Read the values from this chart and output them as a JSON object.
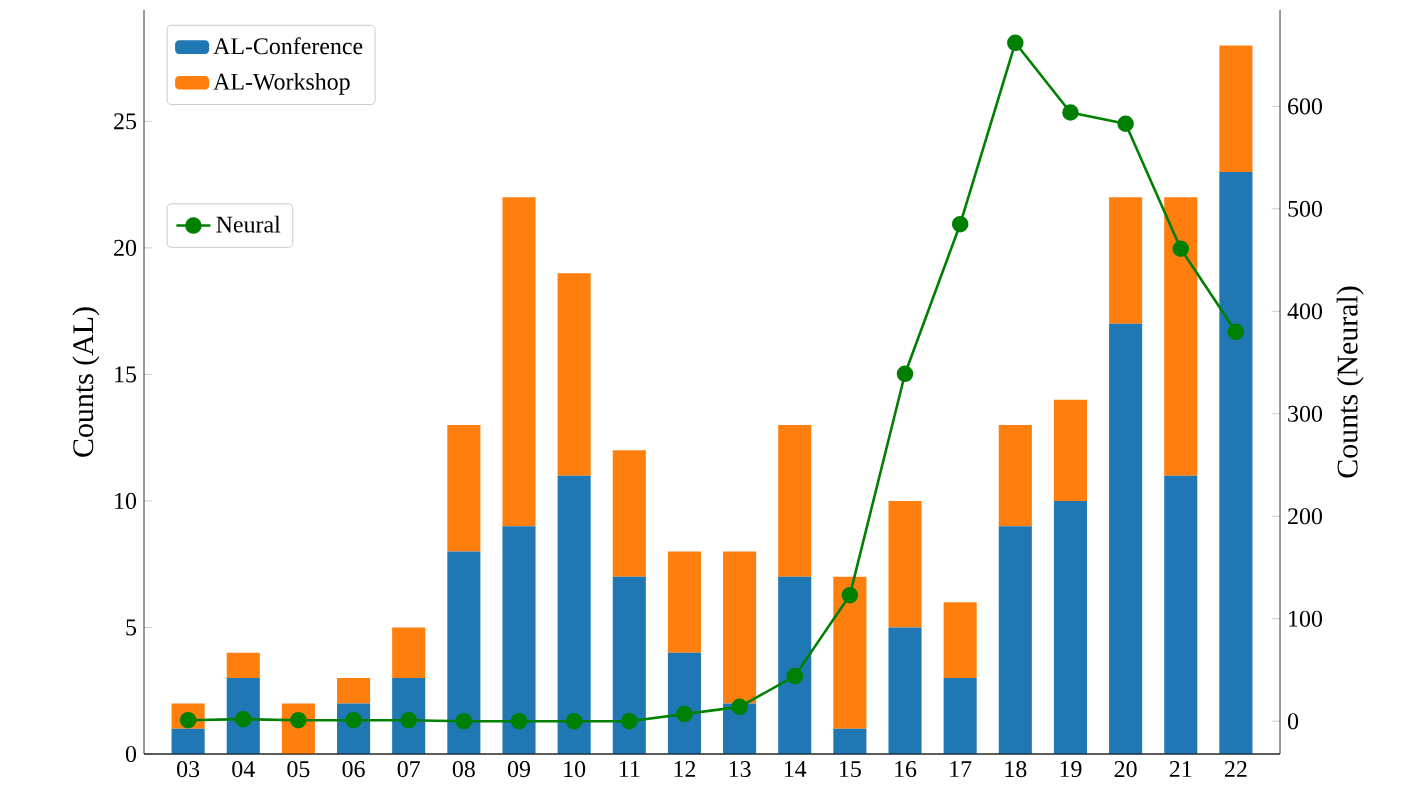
{
  "chart_data": {
    "type": "bar",
    "stacked": true,
    "ylabel": "Counts (AL)",
    "y2label": "Counts (Neural)",
    "categories": [
      "03",
      "04",
      "05",
      "06",
      "07",
      "08",
      "09",
      "10",
      "11",
      "12",
      "13",
      "14",
      "15",
      "16",
      "17",
      "18",
      "19",
      "20",
      "21",
      "22"
    ],
    "series": [
      {
        "name": "AL-Conference",
        "color": "#1f77b4",
        "values": [
          1,
          3,
          0,
          2,
          3,
          8,
          9,
          11,
          7,
          4,
          2,
          7,
          1,
          5,
          3,
          9,
          10,
          17,
          11,
          23
        ]
      },
      {
        "name": "AL-Workshop",
        "color": "#ff7f0e",
        "values": [
          1,
          1,
          2,
          1,
          2,
          5,
          13,
          8,
          5,
          4,
          6,
          6,
          6,
          5,
          3,
          4,
          4,
          5,
          11,
          5
        ]
      },
      {
        "name": "Neural",
        "type": "line",
        "axis": "y2",
        "color": "#008000",
        "marker": "circle",
        "values": [
          1,
          2,
          1,
          1,
          1,
          0,
          0,
          0,
          0,
          7,
          14,
          44,
          123,
          339,
          485,
          662,
          594,
          583,
          461,
          380
        ]
      }
    ],
    "ylim": [
      0,
      29.4
    ],
    "yticks": [
      0,
      5,
      10,
      15,
      20,
      25
    ],
    "y2lim": [
      -32,
      694
    ],
    "y2ticks": [
      0,
      100,
      200,
      300,
      400,
      500,
      600
    ],
    "legend": "top left",
    "grid": false
  }
}
